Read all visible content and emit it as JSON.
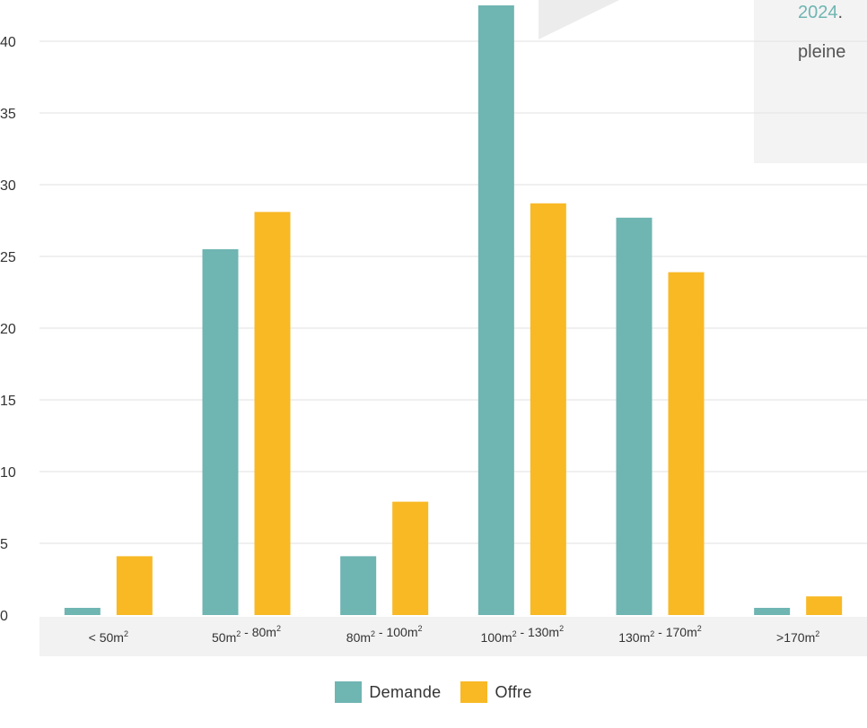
{
  "overlay": {
    "year": "2024",
    "year_dot": ".",
    "word": "pleine"
  },
  "colors": {
    "demande": "#6fb5b2",
    "offre": "#f8b925",
    "grid": "#e6e6e6",
    "axis_band": "#f2f2f2",
    "text": "#333333",
    "overlay_panel": "#f3f3f3",
    "overlay_shape": "#ececec"
  },
  "legend": {
    "items": [
      {
        "label": "Demande",
        "color": "#6fb5b2"
      },
      {
        "label": "Offre",
        "color": "#f8b925"
      }
    ]
  },
  "chart_data": {
    "type": "bar",
    "title": "",
    "xlabel": "",
    "ylabel": "",
    "categories": [
      "< 50m²",
      "50m² - 80m²",
      "80m² - 100m²",
      "100m² - 130m²",
      "130m² - 170m²",
      ">170m²"
    ],
    "category_parts": [
      {
        "a": "< 50m",
        "sup_a": "2",
        "mid": "",
        "b": "",
        "sup_b": ""
      },
      {
        "a": "50m",
        "sup_a": "2",
        "mid": " - ",
        "b": "80m",
        "sup_b": "2"
      },
      {
        "a": "80m",
        "sup_a": "2",
        "mid": " - ",
        "b": "100m",
        "sup_b": "2"
      },
      {
        "a": "100m",
        "sup_a": "2",
        "mid": " - ",
        "b": "130m",
        "sup_b": "2"
      },
      {
        "a": "130m",
        "sup_a": "2",
        "mid": " - ",
        "b": "170m",
        "sup_b": "2"
      },
      {
        "a": ">170m",
        "sup_a": "2",
        "mid": "",
        "b": "",
        "sup_b": ""
      }
    ],
    "series": [
      {
        "name": "Demande",
        "values": [
          0.5,
          25.5,
          4.1,
          42.5,
          27.7,
          0.5
        ]
      },
      {
        "name": "Offre",
        "values": [
          4.1,
          28.1,
          7.9,
          28.7,
          23.9,
          1.3
        ]
      }
    ],
    "yticks": [
      0,
      5,
      10,
      15,
      20,
      25,
      30,
      35,
      40
    ],
    "ylim": [
      0,
      42.5
    ],
    "grid": true,
    "legend_position": "bottom-center"
  }
}
